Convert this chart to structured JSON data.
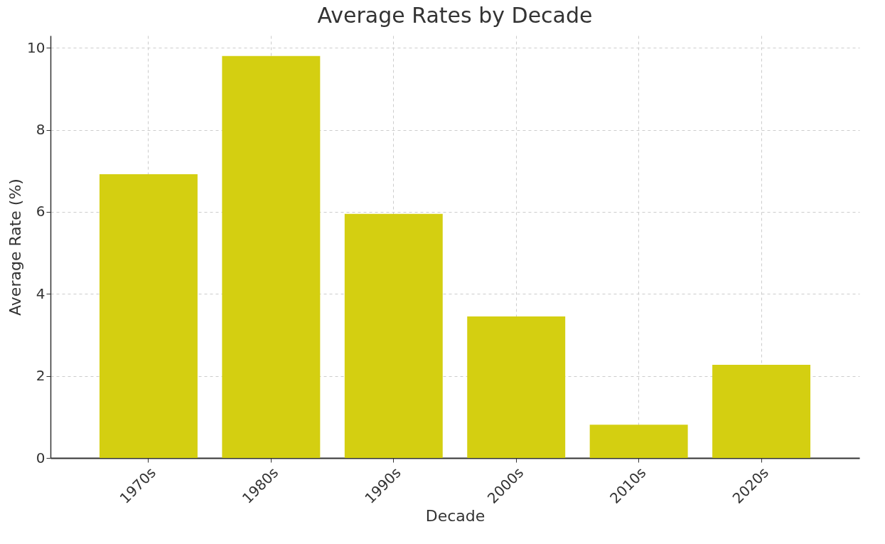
{
  "chart_data": {
    "type": "bar",
    "title": "Average Rates by Decade",
    "xlabel": "Decade",
    "ylabel": "Average Rate (%)",
    "categories": [
      "1970s",
      "1980s",
      "1990s",
      "2000s",
      "2010s",
      "2020s"
    ],
    "values": [
      6.92,
      9.8,
      5.95,
      3.45,
      0.81,
      2.27
    ],
    "color": "#d4cf11",
    "ylim": [
      0,
      10.3
    ],
    "yticks": [
      0,
      2,
      4,
      6,
      8,
      10
    ],
    "grid": true
  }
}
